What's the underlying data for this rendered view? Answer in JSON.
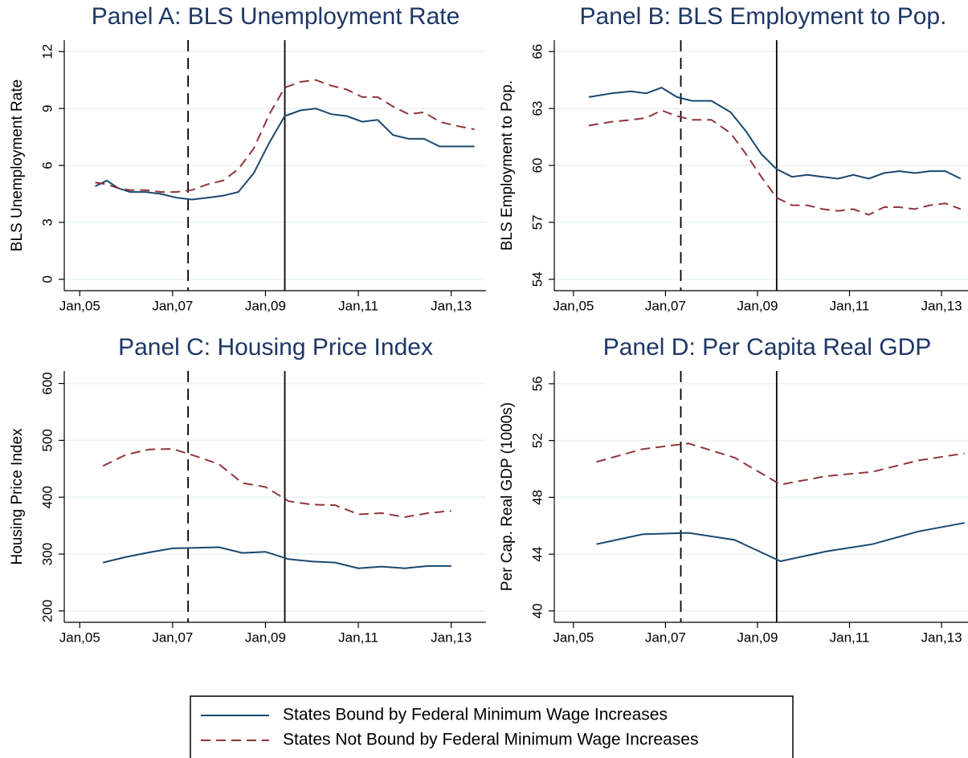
{
  "chart_data": [
    {
      "type": "line",
      "title": "Panel A: BLS Unemployment Rate",
      "y_label": "BLS Unemployment Rate",
      "x": [
        "2005-05",
        "2005-08",
        "2005-11",
        "2006-02",
        "2006-06",
        "2006-10",
        "2007-02",
        "2007-06",
        "2007-10",
        "2008-02",
        "2008-06",
        "2008-10",
        "2009-02",
        "2009-06",
        "2009-10",
        "2010-02",
        "2010-06",
        "2010-10",
        "2011-02",
        "2011-06",
        "2011-10",
        "2012-02",
        "2012-06",
        "2012-10",
        "2013-02",
        "2013-07"
      ],
      "series": [
        {
          "name": "States Bound by Federal Minimum Wage Increases",
          "color": "#1a476f",
          "line_style": "solid",
          "values": [
            4.9,
            5.2,
            4.8,
            4.6,
            4.6,
            4.5,
            4.3,
            4.2,
            4.3,
            4.4,
            4.6,
            5.6,
            7.2,
            8.6,
            8.9,
            9.0,
            8.7,
            8.6,
            8.3,
            8.4,
            7.6,
            7.4,
            7.4,
            7.0,
            7.0,
            7.0
          ]
        },
        {
          "name": "States Not Bound by Federal Minimum Wage Increases",
          "color": "#90353b",
          "line_style": "dashed",
          "values": [
            5.1,
            5.0,
            4.8,
            4.7,
            4.7,
            4.6,
            4.6,
            4.7,
            5.0,
            5.2,
            5.8,
            6.9,
            8.7,
            10.1,
            10.4,
            10.5,
            10.2,
            10.0,
            9.6,
            9.6,
            9.1,
            8.7,
            8.8,
            8.3,
            8.1,
            7.9
          ]
        }
      ],
      "vlines": [
        {
          "x": "2007-05",
          "style": "dashed"
        },
        {
          "x": "2009-06",
          "style": "solid"
        }
      ],
      "xlim": [
        "2004-09",
        "2013-10"
      ],
      "xticks": [
        {
          "value": "2005-01",
          "label": "Jan,05"
        },
        {
          "value": "2007-01",
          "label": "Jan,07"
        },
        {
          "value": "2009-01",
          "label": "Jan,09"
        },
        {
          "value": "2011-01",
          "label": "Jan,11"
        },
        {
          "value": "2013-01",
          "label": "Jan,13"
        }
      ],
      "ylim": [
        -0.6,
        12.6
      ],
      "yticks": [
        0,
        3,
        6,
        9,
        12
      ],
      "grid": true
    },
    {
      "type": "line",
      "title": "Panel B: BLS Employment to Pop.",
      "y_label": "BLS Employment to Pop.",
      "x": [
        "2005-05",
        "2005-11",
        "2006-04",
        "2006-08",
        "2006-12",
        "2007-04",
        "2007-08",
        "2008-01",
        "2008-06",
        "2008-10",
        "2009-02",
        "2009-06",
        "2009-10",
        "2010-02",
        "2010-06",
        "2010-10",
        "2011-02",
        "2011-06",
        "2011-10",
        "2012-02",
        "2012-06",
        "2012-10",
        "2013-02",
        "2013-06"
      ],
      "series": [
        {
          "color": "#1a476f",
          "line_style": "solid",
          "values": [
            63.6,
            63.8,
            63.9,
            63.8,
            64.1,
            63.6,
            63.4,
            63.4,
            62.8,
            61.8,
            60.6,
            59.8,
            59.4,
            59.5,
            59.4,
            59.3,
            59.5,
            59.3,
            59.6,
            59.7,
            59.6,
            59.7,
            59.7,
            59.3
          ]
        },
        {
          "color": "#90353b",
          "line_style": "dashed",
          "values": [
            62.1,
            62.3,
            62.4,
            62.5,
            62.9,
            62.6,
            62.4,
            62.4,
            61.7,
            60.6,
            59.4,
            58.3,
            57.9,
            57.9,
            57.7,
            57.6,
            57.7,
            57.4,
            57.8,
            57.8,
            57.7,
            57.9,
            58.0,
            57.7
          ]
        }
      ],
      "vlines": [
        {
          "x": "2007-05",
          "style": "dashed"
        },
        {
          "x": "2009-06",
          "style": "solid"
        }
      ],
      "xlim": [
        "2004-08",
        "2013-10"
      ],
      "xticks": [
        {
          "value": "2005-01",
          "label": "Jan,05"
        },
        {
          "value": "2007-01",
          "label": "Jan,07"
        },
        {
          "value": "2009-01",
          "label": "Jan,09"
        },
        {
          "value": "2011-01",
          "label": "Jan,11"
        },
        {
          "value": "2013-01",
          "label": "Jan,13"
        }
      ],
      "ylim": [
        53.4,
        66.6
      ],
      "yticks": [
        54,
        57,
        60,
        63,
        66
      ],
      "grid": true
    },
    {
      "type": "line",
      "title": "Panel C: Housing Price Index",
      "y_label": "Housing Price Index",
      "x": [
        "2005-07",
        "2006-01",
        "2006-07",
        "2007-01",
        "2007-07",
        "2008-01",
        "2008-07",
        "2009-01",
        "2009-07",
        "2010-01",
        "2010-07",
        "2011-01",
        "2011-07",
        "2012-01",
        "2012-07",
        "2013-01"
      ],
      "series": [
        {
          "color": "#1a476f",
          "line_style": "solid",
          "values": [
            285,
            295,
            303,
            310,
            311,
            312,
            302,
            304,
            291,
            287,
            285,
            275,
            278,
            275,
            279,
            279
          ]
        },
        {
          "color": "#90353b",
          "line_style": "dashed",
          "values": [
            455,
            475,
            484,
            485,
            472,
            458,
            425,
            418,
            393,
            387,
            386,
            370,
            372,
            365,
            372,
            376
          ]
        }
      ],
      "vlines": [
        {
          "x": "2007-05",
          "style": "dashed"
        },
        {
          "x": "2009-06",
          "style": "solid"
        }
      ],
      "xlim": [
        "2004-09",
        "2013-10"
      ],
      "xticks": [
        {
          "value": "2005-01",
          "label": "Jan,05"
        },
        {
          "value": "2007-01",
          "label": "Jan,07"
        },
        {
          "value": "2009-01",
          "label": "Jan,09"
        },
        {
          "value": "2011-01",
          "label": "Jan,11"
        },
        {
          "value": "2013-01",
          "label": "Jan,13"
        }
      ],
      "ylim": [
        180,
        622
      ],
      "yticks": [
        200,
        300,
        400,
        500,
        600
      ],
      "grid": true
    },
    {
      "type": "line",
      "title": "Panel D: Per Capita Real GDP",
      "y_label": "Per Cap. Real GDP (1000s)",
      "x": [
        "2005-07",
        "2006-07",
        "2007-07",
        "2008-07",
        "2009-07",
        "2010-07",
        "2011-07",
        "2012-07",
        "2013-07"
      ],
      "series": [
        {
          "color": "#1a476f",
          "line_style": "solid",
          "values": [
            44.7,
            45.4,
            45.5,
            45.0,
            43.5,
            44.2,
            44.7,
            45.6,
            46.2
          ]
        },
        {
          "color": "#90353b",
          "line_style": "dashed",
          "values": [
            50.5,
            51.4,
            51.8,
            50.8,
            48.9,
            49.5,
            49.8,
            50.6,
            51.1
          ]
        }
      ],
      "vlines": [
        {
          "x": "2007-05",
          "style": "dashed"
        },
        {
          "x": "2009-06",
          "style": "solid"
        }
      ],
      "xlim": [
        "2004-08",
        "2013-10"
      ],
      "xticks": [
        {
          "value": "2005-01",
          "label": "Jan,05"
        },
        {
          "value": "2007-01",
          "label": "Jan,07"
        },
        {
          "value": "2009-01",
          "label": "Jan,09"
        },
        {
          "value": "2011-01",
          "label": "Jan,11"
        },
        {
          "value": "2013-01",
          "label": "Jan,13"
        }
      ],
      "ylim": [
        39.2,
        56.9
      ],
      "yticks": [
        40,
        44,
        48,
        52,
        56
      ],
      "grid": true
    }
  ]
}
